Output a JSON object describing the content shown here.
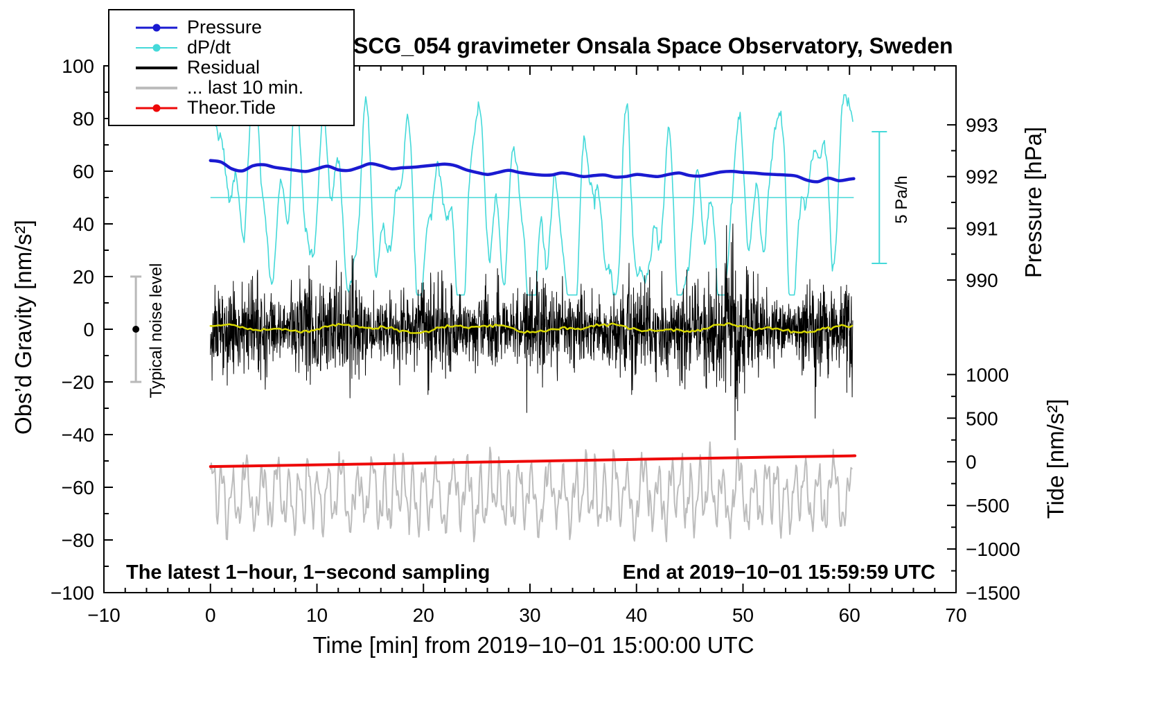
{
  "title": "SCG_054 gravimeter Onsala Space Observatory, Sweden",
  "axes": {
    "x": {
      "label": "Time [min] from 2019−10−01 15:00:00 UTC",
      "min": -10,
      "max": 70,
      "major_ticks": [
        -10,
        0,
        10,
        20,
        30,
        40,
        50,
        60,
        70
      ],
      "minor_step": 2
    },
    "y_left": {
      "label": "Obs’d Gravity [nm/s²]",
      "min": -100,
      "max": 100,
      "major_ticks": [
        -100,
        -80,
        -60,
        -40,
        -20,
        0,
        20,
        40,
        60,
        80,
        100
      ],
      "minor_step": 10
    },
    "y_right_pressure": {
      "label": "Pressure [hPa]",
      "min": 990,
      "max": 993,
      "gravity_min": 18.7,
      "gravity_max": 77.6,
      "major_ticks": [
        990,
        991,
        992,
        993
      ],
      "minor_step": 0.5
    },
    "y_right_tide": {
      "label": "Tide [nm/s²]",
      "min": -1500,
      "max": 1000,
      "gravity_min": -100,
      "gravity_max": -17.2,
      "major_ticks": [
        -1500,
        -1000,
        -500,
        0,
        500,
        1000
      ],
      "minor_step": 250
    }
  },
  "legend": [
    {
      "id": "pressure",
      "label": "Pressure",
      "color": "#1a1ad1",
      "marker": true,
      "width": 3
    },
    {
      "id": "dpdt",
      "label": "dP/dt",
      "color": "#44d9d9",
      "marker": true,
      "width": 2
    },
    {
      "id": "residual",
      "label": "Residual",
      "color": "#000000",
      "marker": false,
      "width": 4
    },
    {
      "id": "last10",
      "label": "... last 10 min.",
      "color": "#bcbcbc",
      "marker": false,
      "width": 4
    },
    {
      "id": "tide",
      "label": "Theor.Tide",
      "color": "#ee0808",
      "marker": true,
      "width": 3
    }
  ],
  "annotations": {
    "sampling_note": "The latest 1−hour, 1−second sampling",
    "end_note": "End at 2019−10−01 15:59:59 UTC",
    "noise_bar_label": "Typical noise level",
    "scale_bar_label": "5 Pa/h"
  },
  "chart_data": {
    "type": "line",
    "title": "SCG_054 gravimeter Onsala Space Observatory, Sweden",
    "xlabel": "Time [min] from 2019−10−01 15:00:00 UTC",
    "x_range": [
      -10,
      70
    ],
    "x_data_range": [
      0,
      60.4
    ],
    "grid": false,
    "legend_position": "top-left",
    "dpdt_axis": {
      "zero_gravity": 50,
      "gravity_per_pa_per_h": 10,
      "scale_bar_represents": "5 Pa/h"
    },
    "extras": {
      "noise_bar": {
        "x": -7,
        "lo": -20,
        "hi": 20,
        "dot": 0,
        "cap": 16,
        "color": "#b9b9b9"
      },
      "scale_bar": {
        "x": 62.8,
        "g0": 25,
        "g1": 75,
        "cap": 22,
        "color": "#44d9d9",
        "represents": "5 Pa/h"
      }
    },
    "series": [
      {
        "id": "dpdt-zero-line",
        "name": "dP/dt zero reference line",
        "type": "hline",
        "axis": "dpdt",
        "value": 0,
        "x0": 0,
        "x1": 60.4,
        "color": "#44d9d9",
        "width": 1.5
      },
      {
        "id": "dpdt",
        "name": "dP/dt",
        "axis": "dpdt",
        "unit": "Pa/h",
        "color": "#44d9d9",
        "width": 1.6,
        "synthetic": {
          "kind": "oscillation",
          "seed": 7,
          "t0": 0,
          "t1": 60.35,
          "dt": 0.0833,
          "center": 0,
          "sines": [
            [
              2.4,
              3.5,
              0.4
            ],
            [
              1.4,
              2.05,
              1.2
            ],
            [
              0.9,
              1.35,
              2.2
            ],
            [
              0.6,
              8.2,
              0
            ]
          ],
          "walk": {
            "step": 0.18,
            "damp": 0.975
          },
          "clamp": [
            -3.7,
            3.9
          ]
        }
      },
      {
        "id": "pressure",
        "name": "Pressure",
        "axis": "pressure",
        "unit": "hPa",
        "color": "#1a1ad1",
        "width": 4.5,
        "smooth": true,
        "points": [
          [
            0,
            992.31
          ],
          [
            1,
            992.28
          ],
          [
            2,
            992.15
          ],
          [
            3,
            992.11
          ],
          [
            4,
            992.21
          ],
          [
            5,
            992.23
          ],
          [
            6,
            992.18
          ],
          [
            7,
            992.15
          ],
          [
            8,
            992.12
          ],
          [
            9,
            992.1
          ],
          [
            10,
            992.15
          ],
          [
            11,
            992.2
          ],
          [
            12,
            992.13
          ],
          [
            13,
            992.12
          ],
          [
            14,
            992.18
          ],
          [
            15,
            992.25
          ],
          [
            16,
            992.21
          ],
          [
            17,
            992.15
          ],
          [
            18,
            992.17
          ],
          [
            19,
            992.18
          ],
          [
            20,
            992.2
          ],
          [
            21,
            992.22
          ],
          [
            22,
            992.24
          ],
          [
            23,
            992.21
          ],
          [
            24,
            992.13
          ],
          [
            25,
            992.08
          ],
          [
            26,
            992.04
          ],
          [
            27,
            992.08
          ],
          [
            28,
            992.12
          ],
          [
            29,
            992.08
          ],
          [
            30,
            992.05
          ],
          [
            31,
            992.03
          ],
          [
            32,
            992.03
          ],
          [
            33,
            992.07
          ],
          [
            34,
            992.04
          ],
          [
            35,
            992.0
          ],
          [
            36,
            992.02
          ],
          [
            37,
            992.03
          ],
          [
            38,
            991.99
          ],
          [
            39,
            992.0
          ],
          [
            40,
            992.04
          ],
          [
            41,
            992.02
          ],
          [
            42,
            992.0
          ],
          [
            43,
            992.04
          ],
          [
            44,
            992.07
          ],
          [
            45,
            992.02
          ],
          [
            46,
            992.01
          ],
          [
            47,
            992.05
          ],
          [
            48,
            992.09
          ],
          [
            49,
            992.1
          ],
          [
            50,
            992.08
          ],
          [
            51,
            992.07
          ],
          [
            52,
            992.05
          ],
          [
            53,
            992.04
          ],
          [
            54,
            992.03
          ],
          [
            55,
            992.01
          ],
          [
            56,
            991.93
          ],
          [
            57,
            991.9
          ],
          [
            58,
            991.97
          ],
          [
            59,
            991.92
          ],
          [
            60,
            991.95
          ],
          [
            60.4,
            991.96
          ]
        ]
      },
      {
        "id": "residual",
        "name": "Residual",
        "axis": "gravity",
        "unit": "nm/s²",
        "color": "#000000",
        "width": 1,
        "synthetic": {
          "kind": "noise",
          "seed": 11,
          "t0": 0,
          "t1": 60.3,
          "dt": 0.025,
          "sigma": 7.5,
          "sigma_sines": [
            [
              1.6,
              9.5,
              0
            ],
            [
              1.2,
              4.3,
              1
            ]
          ],
          "bursts": [
            [
              7.5,
              10,
              1.5
            ],
            [
              19,
              23,
              1
            ],
            [
              44,
              50.5,
              3.5
            ],
            [
              55.5,
              60.3,
              1.2
            ]
          ],
          "spikes": [
            [
              48.9,
              33
            ],
            [
              49.05,
              40
            ],
            [
              49.25,
              -42
            ],
            [
              49.5,
              -31
            ]
          ],
          "clamp": [
            -43,
            41
          ]
        }
      },
      {
        "id": "residual-mean",
        "name": "Residual running mean",
        "axis": "gravity",
        "unit": "nm/s²",
        "color": "#d8d800",
        "width": 2.5,
        "synthetic": {
          "kind": "oscillation",
          "seed": 5,
          "t0": 0,
          "t1": 60.3,
          "dt": 0.25,
          "center": 0.3,
          "sines": [
            [
              1.1,
              12,
              1
            ],
            [
              0.6,
              5.2,
              0
            ]
          ],
          "noise": 0.3,
          "clamp": [
            -2.5,
            3
          ]
        }
      },
      {
        "id": "last10",
        "name": "Residual ... last 10 min. (magnified)",
        "axis": "gravity",
        "color": "#bcbcbc",
        "width": 2,
        "synthetic": {
          "kind": "oscillation",
          "seed": 23,
          "t0": 0,
          "t1": 60.3,
          "dt": 0.0833,
          "center": -63,
          "sines": [
            [
              9.5,
              1.12,
              0,
              2.5,
              9
            ],
            [
              5,
              0.43,
              1.3
            ],
            [
              3,
              2.9,
              0.7
            ]
          ],
          "noise": 1.6,
          "clamp": [
            -87,
            -36
          ]
        }
      },
      {
        "id": "theor-tide",
        "name": "Theor.Tide",
        "axis": "tide",
        "unit": "nm/s²",
        "color": "#ee0808",
        "width": 4,
        "smooth": true,
        "points": [
          [
            0,
            -55
          ],
          [
            5,
            -45
          ],
          [
            10,
            -35
          ],
          [
            15,
            -25
          ],
          [
            20,
            -14
          ],
          [
            25,
            -4
          ],
          [
            30,
            6
          ],
          [
            35,
            17
          ],
          [
            40,
            28
          ],
          [
            45,
            38
          ],
          [
            50,
            48
          ],
          [
            55,
            58
          ],
          [
            60,
            68
          ],
          [
            60.4,
            69
          ]
        ]
      }
    ]
  }
}
